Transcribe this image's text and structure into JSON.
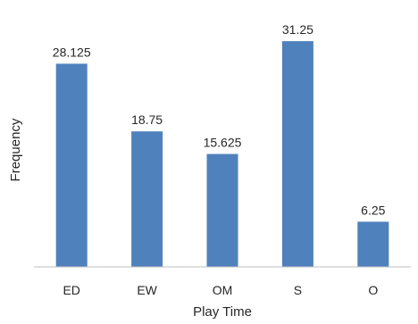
{
  "chart_data": {
    "type": "bar",
    "categories": [
      "ED",
      "EW",
      "OM",
      "S",
      "O"
    ],
    "values": [
      28.125,
      18.75,
      15.625,
      31.25,
      6.25
    ],
    "data_labels": [
      "28.125",
      "18.75",
      "15.625",
      "31.25",
      "6.25"
    ],
    "title": "",
    "xlabel": "Play Time",
    "ylabel": "Frequency",
    "ylim": [
      0,
      32
    ],
    "grid": false,
    "legend": "none",
    "bar_color": "#4f81bd",
    "axis_color": "#bfbfbf",
    "text_color": "#262626"
  }
}
